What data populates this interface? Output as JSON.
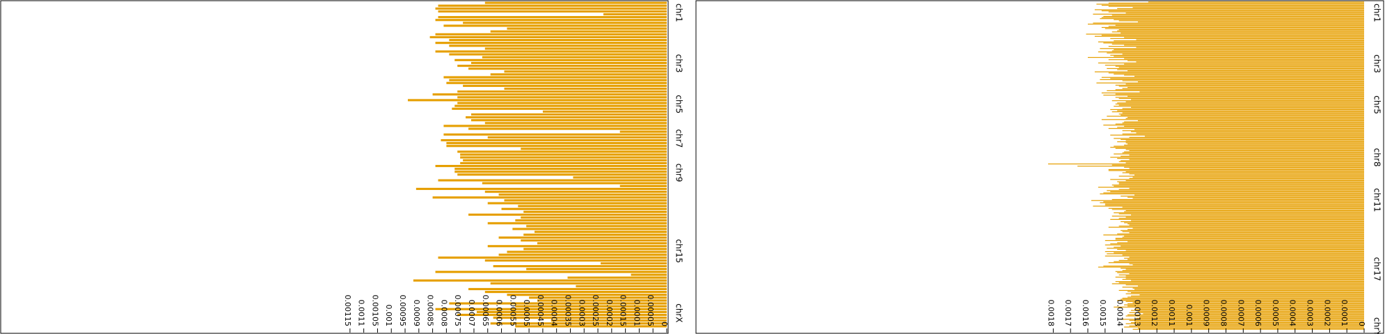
{
  "colors": {
    "bar": "#e69f00",
    "frame": "#000000",
    "background": "#ffffff"
  },
  "chart_data": [
    {
      "type": "bar",
      "orientation": "horizontal",
      "value_axis_reversed": true,
      "xlim": [
        0,
        0.00118
      ],
      "grid": false,
      "legend": "none",
      "title": "",
      "xlabel": "",
      "ylabel": "",
      "ticks": [
        {
          "v": 0,
          "label": "0"
        },
        {
          "v": 5e-05,
          "label": "0.00005"
        },
        {
          "v": 0.0001,
          "label": "0.0001"
        },
        {
          "v": 0.00015,
          "label": "0.00015"
        },
        {
          "v": 0.0002,
          "label": "0.0002"
        },
        {
          "v": 0.00025,
          "label": "0.00025"
        },
        {
          "v": 0.0003,
          "label": "0.0003"
        },
        {
          "v": 0.00035,
          "label": "0.00035"
        },
        {
          "v": 0.0004,
          "label": "0.0004"
        },
        {
          "v": 0.00045,
          "label": "0.00045"
        },
        {
          "v": 0.0005,
          "label": "0.0005"
        },
        {
          "v": 0.00055,
          "label": "0.00055"
        },
        {
          "v": 0.0006,
          "label": "0.0006"
        },
        {
          "v": 0.00065,
          "label": "0.00065"
        },
        {
          "v": 0.0007,
          "label": "0.0007"
        },
        {
          "v": 0.00075,
          "label": "0.00075"
        },
        {
          "v": 0.0008,
          "label": "0.0008"
        },
        {
          "v": 0.00085,
          "label": "0.00085"
        },
        {
          "v": 0.0009,
          "label": "0.0009"
        },
        {
          "v": 0.00095,
          "label": "0.00095"
        },
        {
          "v": 0.001,
          "label": "0.001"
        },
        {
          "v": 0.00105,
          "label": "0.00105"
        },
        {
          "v": 0.0011,
          "label": "0.0011"
        },
        {
          "v": 0.00115,
          "label": "0.00115"
        }
      ],
      "category_labels": [
        {
          "label": "chr1",
          "at": 0.035
        },
        {
          "label": "chr3",
          "at": 0.19
        },
        {
          "label": "chr5",
          "at": 0.315
        },
        {
          "label": "chr7",
          "at": 0.42
        },
        {
          "label": "chr9",
          "at": 0.525
        },
        {
          "label": "chr15",
          "at": 0.765
        },
        {
          "label": "chrX",
          "at": 0.955
        }
      ],
      "values": [
        0.00066,
        0.00083,
        0.00084,
        0.00083,
        0.00023,
        0.00083,
        0.00084,
        0.00074,
        0.00081,
        0.00058,
        0.00064,
        0.00084,
        0.00086,
        0.00079,
        0.00084,
        0.00079,
        0.00066,
        0.00084,
        0.00079,
        0.00067,
        0.00077,
        0.00071,
        0.00076,
        0.00072,
        0.00059,
        0.00064,
        0.00081,
        0.00079,
        0.0008,
        0.00074,
        0.00059,
        0.00076,
        0.00085,
        0.00076,
        0.00094,
        0.00076,
        0.00077,
        0.00078,
        0.00045,
        0.00071,
        0.00073,
        0.00071,
        0.00066,
        0.00081,
        0.00072,
        0.00017,
        0.00081,
        0.00065,
        0.00082,
        0.0008,
        0.0008,
        0.00053,
        0.00076,
        0.00075,
        0.00075,
        0.00074,
        0.00075,
        0.00084,
        0.00077,
        0.00077,
        0.00076,
        0.00034,
        0.00083,
        0.00067,
        0.00017,
        0.00091,
        0.00066,
        0.00061,
        0.00085,
        0.00059,
        0.00065,
        0.00054,
        0.0006,
        0.00052,
        0.00072,
        0.00053,
        0.00055,
        0.00065,
        0.00051,
        0.00056,
        0.00048,
        0.00052,
        0.00061,
        0.00053,
        0.00047,
        0.00065,
        0.00052,
        0.00058,
        0.00061,
        0.00083,
        0.00066,
        0.00024,
        0.00063,
        0.00051,
        0.00084,
        0.00013,
        0.00036,
        0.00092,
        0.00064,
        0.00033,
        0.00072,
        0.00066,
        0.00058,
        0.0005,
        0.00047,
        0.00079,
        0.00055,
        0.00084,
        0.00069,
        0.00076,
        0.00063,
        0.00042,
        0.00064,
        0.00055
      ]
    },
    {
      "type": "bar",
      "orientation": "horizontal",
      "value_axis_reversed": true,
      "xlim": [
        0,
        0.00187
      ],
      "grid": false,
      "legend": "none",
      "title": "",
      "xlabel": "",
      "ylabel": "",
      "ticks": [
        {
          "v": 0,
          "label": "0"
        },
        {
          "v": 0.0001,
          "label": "0.0001"
        },
        {
          "v": 0.0002,
          "label": "0.0002"
        },
        {
          "v": 0.0003,
          "label": "0.0003"
        },
        {
          "v": 0.0004,
          "label": "0.0004"
        },
        {
          "v": 0.0005,
          "label": "0.0005"
        },
        {
          "v": 0.0006,
          "label": "0.0006"
        },
        {
          "v": 0.0007,
          "label": "0.0007"
        },
        {
          "v": 0.0008,
          "label": "0.0008"
        },
        {
          "v": 0.0009,
          "label": "0.0009"
        },
        {
          "v": 0.001,
          "label": "0.001"
        },
        {
          "v": 0.0011,
          "label": "0.0011"
        },
        {
          "v": 0.0012,
          "label": "0.0012"
        },
        {
          "v": 0.0013,
          "label": "0.0013"
        },
        {
          "v": 0.0014,
          "label": "0.0014"
        },
        {
          "v": 0.0015,
          "label": "0.0015"
        },
        {
          "v": 0.0016,
          "label": "0.0016"
        },
        {
          "v": 0.0017,
          "label": "0.0017"
        },
        {
          "v": 0.0018,
          "label": "0.0018"
        }
      ],
      "category_labels": [
        {
          "label": "chr1",
          "at": 0.035
        },
        {
          "label": "chr3",
          "at": 0.19
        },
        {
          "label": "chr5",
          "at": 0.315
        },
        {
          "label": "chr8",
          "at": 0.475
        },
        {
          "label": "chr11",
          "at": 0.605
        },
        {
          "label": "chr17",
          "at": 0.815
        },
        {
          "label": "chrY",
          "at": 0.99
        }
      ],
      "values": [
        0.00125,
        0.00148,
        0.00155,
        0.00152,
        0.00148,
        0.00134,
        0.00143,
        0.00156,
        0.00152,
        0.00148,
        0.00138,
        0.00157,
        0.00146,
        0.00151,
        0.00152,
        0.00153,
        0.00145,
        0.00142,
        0.00131,
        0.00157,
        0.0016,
        0.00144,
        0.00148,
        0.00152,
        0.0015,
        0.00142,
        0.00143,
        0.00146,
        0.00141,
        0.00161,
        0.00152,
        0.00156,
        0.00139,
        0.00147,
        0.00132,
        0.00145,
        0.00154,
        0.00151,
        0.00146,
        0.00139,
        0.00148,
        0.00132,
        0.00153,
        0.00145,
        0.00146,
        0.00154,
        0.00149,
        0.0014,
        0.00147,
        0.00145,
        0.0016,
        0.00139,
        0.00148,
        0.00137,
        0.00132,
        0.00154,
        0.00139,
        0.0015,
        0.00144,
        0.00142,
        0.00149,
        0.00143,
        0.00137,
        0.00156,
        0.00148,
        0.00145,
        0.00139,
        0.00133,
        0.00152,
        0.00147,
        0.00153,
        0.0014,
        0.00131,
        0.00155,
        0.00138,
        0.00144,
        0.00142,
        0.00137,
        0.0014,
        0.00144,
        0.00149,
        0.0013,
        0.00152,
        0.00144,
        0.00151,
        0.00137,
        0.00144,
        0.00142,
        0.00135,
        0.00146,
        0.00138,
        0.00143,
        0.00144,
        0.00142,
        0.00145,
        0.00135,
        0.0014,
        0.00147,
        0.00143,
        0.00146,
        0.0014,
        0.00142,
        0.00141,
        0.00149,
        0.00137,
        0.00138,
        0.00152,
        0.00131,
        0.00139,
        0.0014,
        0.00144,
        0.00151,
        0.00139,
        0.00143,
        0.00148,
        0.00133,
        0.0014,
        0.00135,
        0.00132,
        0.0014,
        0.00147,
        0.00127,
        0.00136,
        0.00145,
        0.00141,
        0.00138,
        0.00143,
        0.00138,
        0.00137,
        0.00139,
        0.00145,
        0.00147,
        0.00144,
        0.00138,
        0.00136,
        0.00139,
        0.0014,
        0.00145,
        0.00136,
        0.00141,
        0.00147,
        0.00143,
        0.00136,
        0.00141,
        0.00142,
        0.00138,
        0.00183,
        0.00146,
        0.00166,
        0.00139,
        0.00136,
        0.00148,
        0.00148,
        0.00138,
        0.0014,
        0.00136,
        0.00133,
        0.00142,
        0.00134,
        0.00136,
        0.00147,
        0.00138,
        0.00143,
        0.00142,
        0.00142,
        0.00146,
        0.00145,
        0.00154,
        0.00136,
        0.00142,
        0.00149,
        0.00147,
        0.00151,
        0.00153,
        0.00133,
        0.00141,
        0.00137,
        0.00134,
        0.00146,
        0.00158,
        0.00151,
        0.00153,
        0.0015,
        0.0015,
        0.00157,
        0.0014,
        0.00148,
        0.00146,
        0.00138,
        0.00139,
        0.00145,
        0.00142,
        0.00135,
        0.00146,
        0.00138,
        0.00142,
        0.00147,
        0.00135,
        0.00141,
        0.00139,
        0.00137,
        0.00136,
        0.00142,
        0.00148,
        0.00134,
        0.00137,
        0.00141,
        0.0014,
        0.00136,
        0.00143,
        0.00151,
        0.00139,
        0.0014,
        0.00144,
        0.00144,
        0.0015,
        0.00137,
        0.00143,
        0.00147,
        0.0015,
        0.00141,
        0.00145,
        0.00149,
        0.00143,
        0.00138,
        0.0015,
        0.00145,
        0.00149,
        0.0014,
        0.0015,
        0.00136,
        0.00139,
        0.00137,
        0.00142,
        0.00145,
        0.00148,
        0.00136,
        0.00134,
        0.00151,
        0.00154,
        0.00141,
        0.00138,
        0.0014,
        0.00144,
        0.00143,
        0.00136,
        0.00142,
        0.00138,
        0.00144,
        0.00138,
        0.0014,
        0.00135,
        0.00144,
        0.00142,
        0.00146,
        0.00138,
        0.00131,
        0.0014,
        0.00134,
        0.00133,
        0.00142,
        0.00137,
        0.00135,
        0.00138,
        0.0013,
        0.00135,
        0.00137,
        0.0014,
        0.00141,
        0.00143,
        0.00138,
        0.00134,
        0.00137,
        0.00139,
        0.00137,
        0.00145,
        0.0013,
        0.00133,
        0.00135,
        0.00131,
        0.00136,
        0.00128,
        0.00137,
        0.00138,
        0.0013,
        0.00132,
        0.00141,
        0.00136,
        0.00133,
        0.00135,
        0.00138,
        0.00132,
        0.00136,
        0.00139,
        0.00131,
        0.00134
      ]
    }
  ]
}
